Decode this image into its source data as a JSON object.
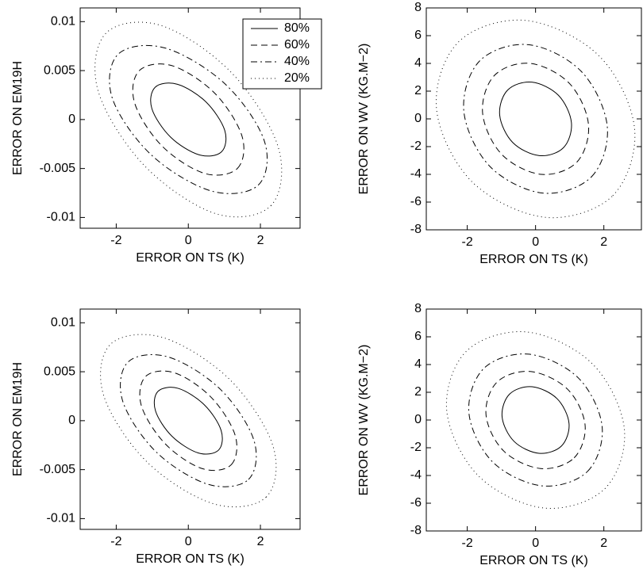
{
  "chart_data": [
    {
      "type": "contour",
      "xlabel": "ERROR ON TS (K)",
      "ylabel": "ERROR ON EM19H",
      "xlim": [
        -3.0,
        3.1
      ],
      "ylim": [
        -0.0111,
        0.0114
      ],
      "xticks": [
        -2,
        0,
        2
      ],
      "yticks": [
        -0.01,
        -0.005,
        0,
        0.005,
        0.01
      ],
      "legend": "upper right",
      "series": [
        {
          "name": "80%",
          "dash": "solid",
          "color": "#000000",
          "x": [
            0.92,
            1.01,
            0.49,
            -0.3,
            -0.92,
            -1.01,
            -0.49,
            0.3
          ],
          "y": [
            -0.0033,
            -0.0011,
            0.0018,
            0.0036,
            0.0033,
            0.0011,
            -0.0018,
            -0.0036
          ]
        },
        {
          "name": "60%",
          "dash": "dashed",
          "color": "#000000",
          "x": [
            1.36,
            1.49,
            0.73,
            -0.45,
            -1.36,
            -1.49,
            -0.73,
            0.45
          ],
          "y": [
            -0.005,
            -0.0017,
            0.0027,
            0.0055,
            0.005,
            0.0017,
            -0.0027,
            -0.0055
          ]
        },
        {
          "name": "40%",
          "dash": "dashdot",
          "color": "#000000",
          "x": [
            1.94,
            2.11,
            1.03,
            -0.64,
            -1.94,
            -2.11,
            -1.03,
            0.64
          ],
          "y": [
            -0.0067,
            -0.0022,
            0.0036,
            0.0073,
            0.0067,
            0.0022,
            -0.0036,
            -0.0073
          ]
        },
        {
          "name": "20%",
          "dash": "dotted",
          "color": "#000000",
          "x": [
            2.29,
            2.5,
            1.22,
            -0.75,
            -2.29,
            -2.5,
            -1.22,
            0.75
          ],
          "y": [
            -0.0088,
            -0.0029,
            0.0047,
            0.0096,
            0.0088,
            0.0029,
            -0.0047,
            -0.0096
          ]
        }
      ]
    },
    {
      "type": "contour",
      "xlabel": "ERROR ON TS (K)",
      "ylabel": "ERROR ON WV (KG.M−2)",
      "xlim": [
        -3.2,
        3.1
      ],
      "ylim": [
        -8,
        8
      ],
      "xticks": [
        -2,
        0,
        2
      ],
      "yticks": [
        -8,
        -6,
        -4,
        -2,
        0,
        2,
        4,
        6,
        8
      ],
      "series": [
        {
          "dash": "solid",
          "color": "#000000",
          "x": [
            0.82,
            1.05,
            0.67,
            -0.11,
            -0.82,
            -1.05,
            -0.67,
            0.11
          ],
          "y": [
            -2.07,
            -0.27,
            1.7,
            2.65,
            2.07,
            0.27,
            -1.7,
            -2.65
          ]
        },
        {
          "dash": "dashed",
          "color": "#000000",
          "x": [
            1.21,
            1.55,
            0.99,
            -0.16,
            -1.21,
            -1.55,
            -0.99,
            0.16
          ],
          "y": [
            -3.12,
            -0.4,
            2.56,
            4.0,
            3.12,
            0.4,
            -2.56,
            -4.0
          ]
        },
        {
          "dash": "dashdot",
          "color": "#000000",
          "x": [
            1.64,
            2.1,
            1.34,
            -0.21,
            -1.64,
            -2.1,
            -1.34,
            0.21
          ],
          "y": [
            -4.17,
            -0.54,
            3.42,
            5.35,
            4.17,
            0.54,
            -3.42,
            -5.35
          ]
        },
        {
          "dash": "dotted",
          "color": "#000000",
          "x": [
            2.26,
            2.9,
            1.86,
            -0.29,
            -2.26,
            -2.9,
            -1.86,
            0.29
          ],
          "y": [
            -5.54,
            -0.71,
            4.54,
            7.1,
            5.54,
            0.71,
            -4.54,
            -7.1
          ]
        }
      ]
    },
    {
      "type": "contour",
      "xlabel": "ERROR ON TS (K)",
      "ylabel": "ERROR ON EM19H",
      "xlim": [
        -3.0,
        3.1
      ],
      "ylim": [
        -0.0111,
        0.0114
      ],
      "xticks": [
        -2,
        0,
        2
      ],
      "yticks": [
        -0.01,
        -0.005,
        0,
        0.005,
        0.01
      ],
      "series": [
        {
          "dash": "solid",
          "color": "#000000",
          "x": [
            0.84,
            0.91,
            0.45,
            -0.28,
            -0.84,
            -0.91,
            -0.45,
            0.28
          ],
          "y": [
            -0.003,
            -0.001,
            0.0016,
            0.0033,
            0.003,
            0.001,
            -0.0016,
            -0.0033
          ]
        },
        {
          "dash": "dashed",
          "color": "#000000",
          "x": [
            1.19,
            1.3,
            0.63,
            -0.39,
            -1.19,
            -1.3,
            -0.63,
            0.39
          ],
          "y": [
            -0.0045,
            -0.0015,
            0.0024,
            0.0049,
            0.0045,
            0.0015,
            -0.0024,
            -0.0049
          ]
        },
        {
          "dash": "dashdot",
          "color": "#000000",
          "x": [
            1.67,
            1.82,
            0.89,
            -0.55,
            -1.67,
            -1.82,
            -0.89,
            0.55
          ],
          "y": [
            -0.006,
            -0.002,
            0.0032,
            0.0065,
            0.006,
            0.002,
            -0.0032,
            -0.0065
          ]
        },
        {
          "dash": "dotted",
          "color": "#000000",
          "x": [
            2.16,
            2.35,
            1.15,
            -0.71,
            -2.16,
            -2.35,
            -1.15,
            0.71
          ],
          "y": [
            -0.0078,
            -0.0026,
            0.0042,
            0.0085,
            0.0078,
            0.0026,
            -0.0042,
            -0.0085
          ]
        }
      ]
    },
    {
      "type": "contour",
      "xlabel": "ERROR ON TS (K)",
      "ylabel": "ERROR ON WV (KG.M−2)",
      "xlim": [
        -3.2,
        3.1
      ],
      "ylim": [
        -8,
        8
      ],
      "xticks": [
        -2,
        0,
        2
      ],
      "yticks": [
        -8,
        -6,
        -4,
        -2,
        0,
        2,
        4,
        6,
        8
      ],
      "series": [
        {
          "dash": "solid",
          "color": "#000000",
          "x": [
            0.76,
            0.98,
            0.63,
            -0.1,
            -0.76,
            -0.98,
            -0.63,
            0.1
          ],
          "y": [
            -1.87,
            -0.24,
            1.54,
            2.4,
            1.87,
            0.24,
            -1.54,
            -2.4
          ]
        },
        {
          "dash": "dashed",
          "color": "#000000",
          "x": [
            1.13,
            1.45,
            0.93,
            -0.15,
            -1.13,
            -1.45,
            -0.93,
            0.15
          ],
          "y": [
            -2.73,
            -0.35,
            2.24,
            3.5,
            2.73,
            0.35,
            -2.24,
            -3.5
          ]
        },
        {
          "dash": "dashdot",
          "color": "#000000",
          "x": [
            1.52,
            1.95,
            1.25,
            -0.2,
            -1.52,
            -1.95,
            -1.25,
            0.2
          ],
          "y": [
            -3.71,
            -0.48,
            3.04,
            4.75,
            3.71,
            0.48,
            -3.04,
            -4.75
          ]
        },
        {
          "dash": "dotted",
          "color": "#000000",
          "x": [
            2.03,
            2.6,
            1.66,
            -0.26,
            -2.03,
            -2.6,
            -1.66,
            0.26
          ],
          "y": [
            -4.95,
            -0.64,
            4.06,
            6.35,
            4.95,
            0.64,
            -4.06,
            -6.35
          ]
        }
      ]
    }
  ]
}
